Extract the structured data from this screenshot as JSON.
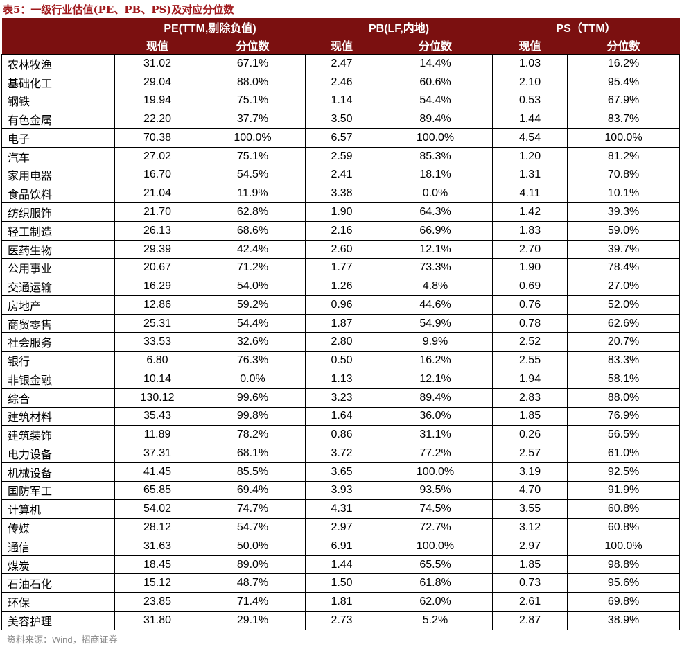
{
  "header": {
    "title": "表5：一级行业估值(PE、PB、PS)及对应分位数"
  },
  "table": {
    "groups": [
      {
        "name": "PE(TTM,剔除负值)",
        "cols": [
          "现值",
          "分位数"
        ]
      },
      {
        "name": "PB(LF,内地)",
        "cols": [
          "现值",
          "分位数"
        ]
      },
      {
        "name": "PS（TTM）",
        "cols": [
          "现值",
          "分位数"
        ]
      }
    ],
    "rows": [
      [
        "农林牧渔",
        "31.02",
        "67.1%",
        "2.47",
        "14.4%",
        "1.03",
        "16.2%"
      ],
      [
        "基础化工",
        "29.04",
        "88.0%",
        "2.46",
        "60.6%",
        "2.10",
        "95.4%"
      ],
      [
        "钢铁",
        "19.94",
        "75.1%",
        "1.14",
        "54.4%",
        "0.53",
        "67.9%"
      ],
      [
        "有色金属",
        "22.20",
        "37.7%",
        "3.50",
        "89.4%",
        "1.44",
        "83.7%"
      ],
      [
        "电子",
        "70.38",
        "100.0%",
        "6.57",
        "100.0%",
        "4.54",
        "100.0%"
      ],
      [
        "汽车",
        "27.02",
        "75.1%",
        "2.59",
        "85.3%",
        "1.20",
        "81.2%"
      ],
      [
        "家用电器",
        "16.70",
        "54.5%",
        "2.41",
        "18.1%",
        "1.31",
        "70.8%"
      ],
      [
        "食品饮料",
        "21.04",
        "11.9%",
        "3.38",
        "0.0%",
        "4.11",
        "10.1%"
      ],
      [
        "纺织服饰",
        "21.70",
        "62.8%",
        "1.90",
        "64.3%",
        "1.42",
        "39.3%"
      ],
      [
        "轻工制造",
        "26.13",
        "68.6%",
        "2.16",
        "66.9%",
        "1.83",
        "59.0%"
      ],
      [
        "医药生物",
        "29.39",
        "42.4%",
        "2.60",
        "12.1%",
        "2.70",
        "39.7%"
      ],
      [
        "公用事业",
        "20.67",
        "71.2%",
        "1.77",
        "73.3%",
        "1.90",
        "78.4%"
      ],
      [
        "交通运输",
        "16.29",
        "54.0%",
        "1.26",
        "4.8%",
        "0.69",
        "27.0%"
      ],
      [
        "房地产",
        "12.86",
        "59.2%",
        "0.96",
        "44.6%",
        "0.76",
        "52.0%"
      ],
      [
        "商贸零售",
        "25.31",
        "54.4%",
        "1.87",
        "54.9%",
        "0.78",
        "62.6%"
      ],
      [
        "社会服务",
        "33.53",
        "32.6%",
        "2.80",
        "9.9%",
        "2.52",
        "20.7%"
      ],
      [
        "银行",
        "6.80",
        "76.3%",
        "0.50",
        "16.2%",
        "2.55",
        "83.3%"
      ],
      [
        "非银金融",
        "10.14",
        "0.0%",
        "1.13",
        "12.1%",
        "1.94",
        "58.1%"
      ],
      [
        "综合",
        "130.12",
        "99.6%",
        "3.23",
        "89.4%",
        "2.83",
        "88.0%"
      ],
      [
        "建筑材料",
        "35.43",
        "99.8%",
        "1.64",
        "36.0%",
        "1.85",
        "76.9%"
      ],
      [
        "建筑装饰",
        "11.89",
        "78.2%",
        "0.86",
        "31.1%",
        "0.26",
        "56.5%"
      ],
      [
        "电力设备",
        "37.31",
        "68.1%",
        "3.72",
        "77.2%",
        "2.57",
        "61.0%"
      ],
      [
        "机械设备",
        "41.45",
        "85.5%",
        "3.65",
        "100.0%",
        "3.19",
        "92.5%"
      ],
      [
        "国防军工",
        "65.85",
        "69.4%",
        "3.93",
        "93.5%",
        "4.70",
        "91.9%"
      ],
      [
        "计算机",
        "54.02",
        "74.7%",
        "4.31",
        "74.5%",
        "3.55",
        "60.8%"
      ],
      [
        "传媒",
        "28.12",
        "54.7%",
        "2.97",
        "72.7%",
        "3.12",
        "60.8%"
      ],
      [
        "通信",
        "31.63",
        "50.0%",
        "6.91",
        "100.0%",
        "2.97",
        "100.0%"
      ],
      [
        "煤炭",
        "18.45",
        "89.0%",
        "1.44",
        "65.5%",
        "1.85",
        "98.8%"
      ],
      [
        "石油石化",
        "15.12",
        "48.7%",
        "1.50",
        "61.8%",
        "0.73",
        "95.6%"
      ],
      [
        "环保",
        "23.85",
        "71.4%",
        "1.81",
        "62.0%",
        "2.61",
        "69.8%"
      ],
      [
        "美容护理",
        "31.80",
        "29.1%",
        "2.73",
        "5.2%",
        "2.87",
        "38.9%"
      ]
    ]
  },
  "footer": {
    "source": "资料来源：Wind，招商证券"
  }
}
